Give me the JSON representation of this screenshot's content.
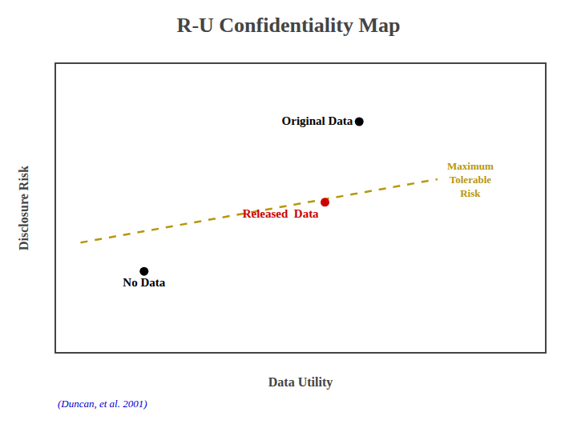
{
  "chart_data": {
    "type": "scatter",
    "title": "R-U Confidentiality Map",
    "x_label": "Data Utility",
    "y_label": "Disclosure Risk",
    "xlim": [
      0,
      1
    ],
    "ylim": [
      0,
      1
    ],
    "tick_labels": false,
    "grid": false,
    "series": [
      {
        "name": "Maximum\nTolerable\nRisk",
        "type": "line",
        "line_style": "dashed",
        "color": "#b8960c",
        "x": [
          0.05,
          0.78
        ],
        "values": [
          0.38,
          0.6
        ]
      },
      {
        "name": "Original Data",
        "type": "scatter",
        "marker": "circle",
        "color": "#000000",
        "x": [
          0.62
        ],
        "values": [
          0.8
        ]
      },
      {
        "name": "Released  Data",
        "type": "scatter",
        "marker": "circle",
        "color": "#cc0000",
        "x": [
          0.55
        ],
        "values": [
          0.52
        ]
      },
      {
        "name": "No Data",
        "type": "scatter",
        "marker": "circle",
        "color": "#000000",
        "x": [
          0.18
        ],
        "values": [
          0.28
        ]
      }
    ],
    "annotations": [
      {
        "text": "(Duncan, et al. 2001)",
        "color": "#0000cc"
      }
    ]
  }
}
